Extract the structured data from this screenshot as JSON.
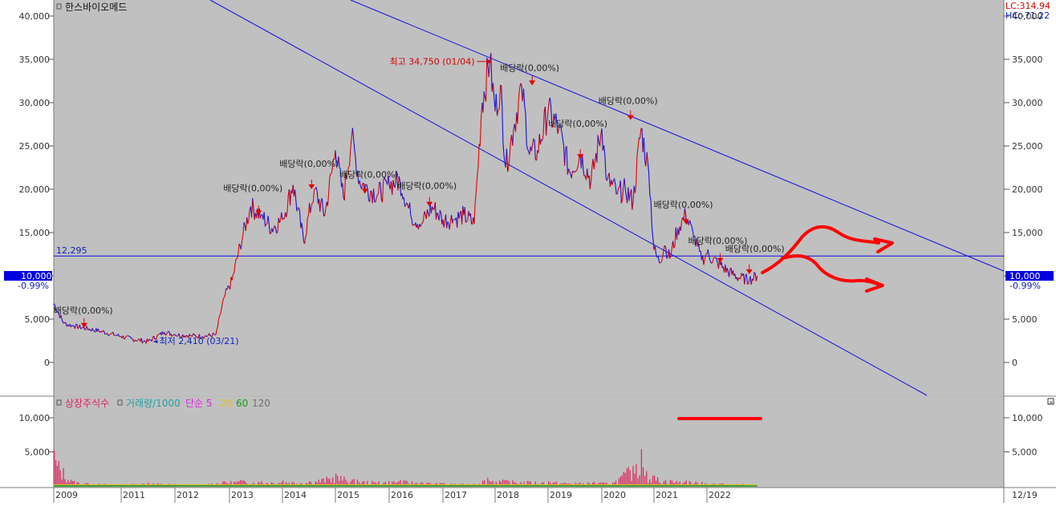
{
  "chart_data": [
    {
      "type": "line",
      "title": "한스바이오메드",
      "price_line_label": "12,295",
      "current_value_label": "10,000",
      "current_change_label": "-0.99%",
      "lc_label": "LC:314.94",
      "hc_label": "HC:-71.22",
      "ylim": [
        -3000,
        41500
      ],
      "yticks": [
        0,
        5000,
        10000,
        15000,
        20000,
        25000,
        30000,
        35000,
        40000
      ],
      "ytick_labels": [
        "0",
        "5,000",
        "10,000",
        "15,000",
        "20,000",
        "25,000",
        "30,000",
        "35,000",
        "40,000"
      ],
      "reference_level": 12295,
      "max_annotation": "최고 34,750 (01/04)",
      "min_annotation": "최저 2,410 (03/21)",
      "dividend_labels": [
        "배당락(0,00%)",
        "배당락(0,00%)",
        "배당락(0,00%)",
        "배당락(0,00%)",
        "배당락(0,00%)",
        "배당락(0,00%)",
        "배당락(0,00%)",
        "배당락(0,00%)",
        "배당락(0,00%)",
        "배당락(0,00%)",
        "배당락(0,00%)"
      ],
      "series": [
        {
          "x": [
            2009.0,
            2009.3,
            2009.6,
            2010.0,
            2010.4,
            2010.7,
            2011.0,
            2011.2,
            2011.5,
            2011.8,
            2012.0,
            2012.3,
            2012.5,
            2012.75,
            2012.9,
            2013.05,
            2013.2,
            2013.4,
            2013.6,
            2013.8,
            2014.0,
            2014.2,
            2014.4,
            2014.6,
            2014.8,
            2015.0,
            2015.15,
            2015.3,
            2015.45,
            2015.6,
            2015.8,
            2016.0,
            2016.2,
            2016.4,
            2016.6,
            2016.8,
            2017.0,
            2017.2,
            2017.4,
            2017.6,
            2017.75,
            2017.9,
            2018.0,
            2018.1,
            2018.2,
            2018.35,
            2018.5,
            2018.65,
            2018.8,
            2019.0,
            2019.2,
            2019.4,
            2019.6,
            2019.8,
            2020.0,
            2020.1,
            2020.2,
            2020.3,
            2020.45,
            2020.6,
            2020.75,
            2020.9,
            2021.0,
            2021.1,
            2021.2,
            2021.3,
            2021.45,
            2021.6,
            2021.75,
            2021.9,
            2022.0,
            2022.2,
            2022.4,
            2022.6,
            2022.8,
            2022.95
          ],
          "values": [
            6800,
            4500,
            4200,
            3900,
            3600,
            3300,
            3000,
            2700,
            2410,
            3500,
            3200,
            3100,
            3000,
            3200,
            7500,
            9500,
            13500,
            18000,
            17000,
            15500,
            16500,
            20500,
            14000,
            20000,
            17000,
            24500,
            19000,
            26000,
            21000,
            20000,
            19500,
            20500,
            21000,
            17000,
            16000,
            18000,
            16500,
            16500,
            17000,
            16000,
            30000,
            34750,
            29000,
            32000,
            22500,
            27000,
            32000,
            24000,
            24500,
            29000,
            27000,
            22000,
            24000,
            21000,
            27000,
            21000,
            20500,
            19500,
            20000,
            18500,
            27000,
            22000,
            13000,
            11500,
            13500,
            12000,
            15500,
            17000,
            14500,
            11800,
            12500,
            11500,
            10500,
            9800,
            9500,
            10000
          ]
        }
      ]
    },
    {
      "type": "bar",
      "title": "상장주식수",
      "legend": [
        {
          "label": "상장주식수",
          "color": "#e0205a"
        },
        {
          "label": "거래량/1000",
          "color": "#20a0a0"
        },
        {
          "label": "단순 5",
          "color": "#e020e0"
        },
        {
          "label": "20",
          "color": "#e0c020"
        },
        {
          "label": "60",
          "color": "#10a010"
        },
        {
          "label": "120",
          "color": "#707070"
        }
      ],
      "ylim": [
        0,
        12000
      ],
      "yticks": [
        5000,
        10000
      ],
      "ytick_labels": [
        "5,000",
        "10,000"
      ],
      "x": [
        2009.0,
        2009.5,
        2010.0,
        2010.5,
        2011.0,
        2011.5,
        2012.0,
        2012.5,
        2012.9,
        2013.2,
        2013.6,
        2014.0,
        2014.5,
        2015.0,
        2015.4,
        2015.8,
        2016.2,
        2016.6,
        2017.0,
        2017.5,
        2017.85,
        2018.2,
        2018.6,
        2019.0,
        2019.5,
        2019.85,
        2020.2,
        2020.5,
        2020.65,
        2020.75,
        2020.85,
        2021.0,
        2021.3,
        2021.6,
        2021.9,
        2022.3,
        2022.7
      ],
      "values": [
        5200,
        900,
        400,
        300,
        250,
        500,
        300,
        250,
        700,
        900,
        700,
        800,
        700,
        1800,
        900,
        700,
        900,
        600,
        450,
        300,
        1200,
        900,
        700,
        700,
        500,
        600,
        500,
        2800,
        3200,
        5400,
        2200,
        1500,
        900,
        800,
        600,
        350,
        300
      ]
    }
  ],
  "x_axis": {
    "year_labels": [
      "2009",
      "2011",
      "2012",
      "2013",
      "2014",
      "2015",
      "2016",
      "2017",
      "2018",
      "2019",
      "2020",
      "2021",
      "2022"
    ],
    "year_values": [
      2009.0,
      2011.0,
      2012.0,
      2013.0,
      2014.0,
      2015.0,
      2016.0,
      2017.0,
      2018.0,
      2019.0,
      2020.0,
      2021.0,
      2022.0
    ],
    "right_label": "12/19"
  },
  "colors": {
    "price_up": "#e00000",
    "price_down": "#1010e0",
    "trendline": "#1010e0",
    "drawn_arrow": "#ff0000",
    "panel_bg": "#c0c0c0"
  }
}
